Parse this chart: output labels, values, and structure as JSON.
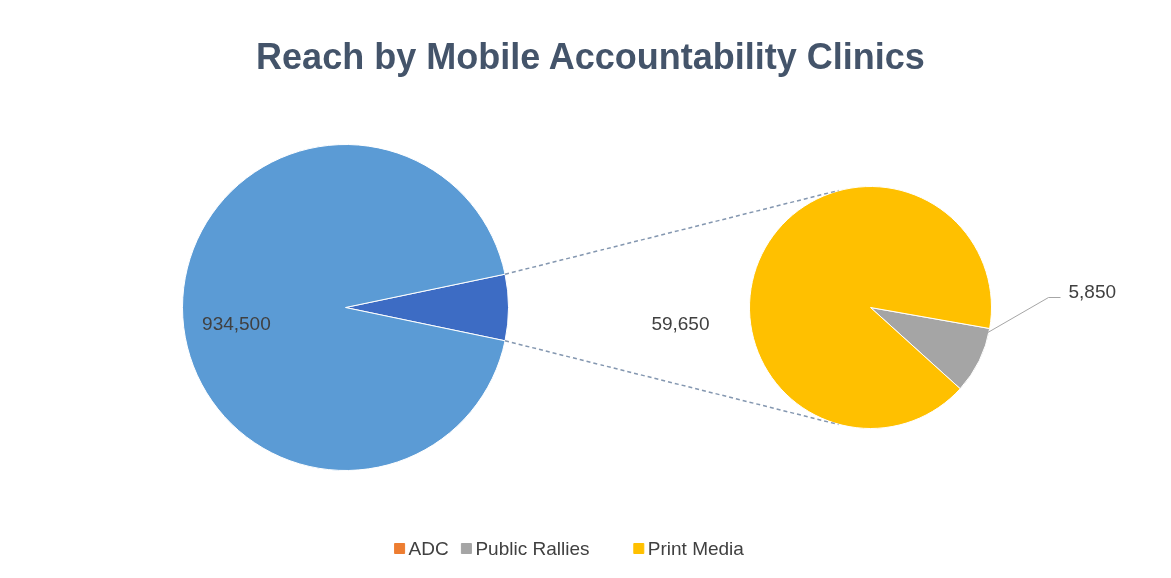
{
  "chart_data": [
    {
      "type": "pie",
      "title": "Reach by Mobile Accountability Clinics",
      "categories": [
        null,
        null
      ],
      "values": [
        934500,
        65500
      ],
      "colors": [
        "#5b9bd5",
        "#3d6cc4"
      ],
      "value_labels": [
        "934,500",
        null
      ]
    },
    {
      "type": "pie",
      "categories": [
        "ADC",
        "Public Rallies",
        "Print Media"
      ],
      "values": [
        null,
        5850,
        59650
      ],
      "colors": [
        "#ed7d31",
        "#a5a5a5",
        "#ffc000"
      ],
      "value_labels": [
        null,
        "5,850",
        "59,650"
      ],
      "legend": "bottom"
    }
  ]
}
